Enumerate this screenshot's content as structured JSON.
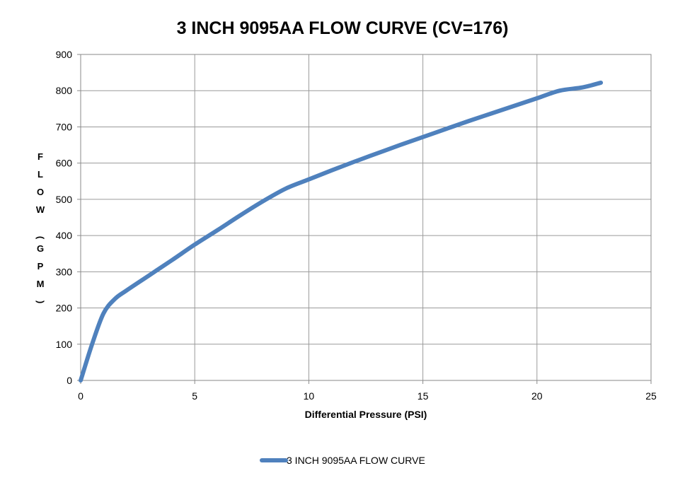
{
  "chart_data": {
    "type": "line",
    "title": "3 INCH 9095AA FLOW CURVE (CV=176)",
    "xlabel": "Differential Pressure (PSI)",
    "ylabel": "FLOW (GPM)",
    "xlim": [
      0,
      25
    ],
    "ylim": [
      0,
      900
    ],
    "xticks": [
      "0",
      "5",
      "10",
      "15",
      "20",
      "25"
    ],
    "yticks": [
      "0",
      "100",
      "200",
      "300",
      "400",
      "500",
      "600",
      "700",
      "800",
      "900"
    ],
    "grid": true,
    "legend_position": "bottom",
    "series": [
      {
        "name": "3 INCH 9095AA FLOW CURVE",
        "color": "#4f81bd",
        "x": [
          0,
          0.5,
          1,
          1.5,
          2,
          3,
          4,
          5,
          6,
          7,
          8,
          9,
          10,
          11,
          12,
          13,
          14,
          15,
          16,
          17,
          18,
          19,
          20,
          21,
          22,
          22.8
        ],
        "y": [
          0,
          100,
          185,
          225,
          248,
          290,
          332,
          375,
          415,
          456,
          495,
          530,
          555,
          580,
          604,
          627,
          650,
          672,
          694,
          716,
          737,
          758,
          779,
          800,
          809,
          822
        ]
      }
    ]
  }
}
